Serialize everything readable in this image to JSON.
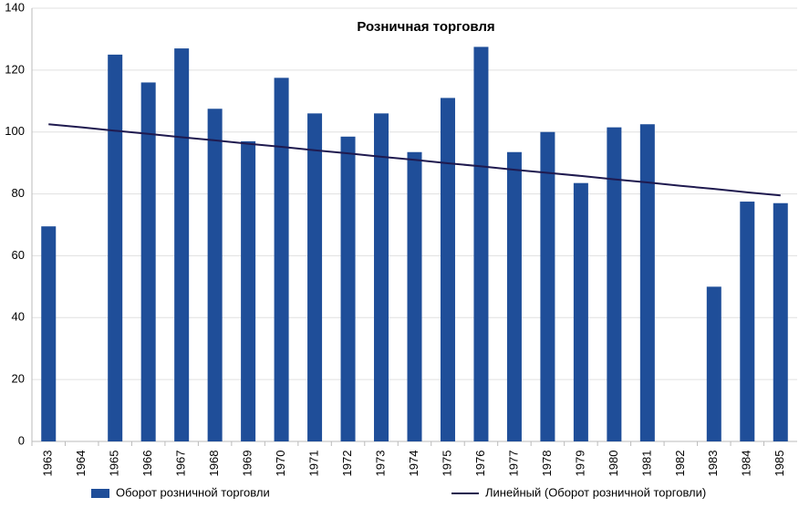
{
  "chart_data": {
    "type": "bar",
    "title": "Розничная торговля",
    "categories": [
      "1963",
      "1964",
      "1965",
      "1966",
      "1967",
      "1968",
      "1969",
      "1970",
      "1971",
      "1972",
      "1973",
      "1974",
      "1975",
      "1976",
      "1977",
      "1978",
      "1979",
      "1980",
      "1981",
      "1982",
      "1983",
      "1984",
      "1985"
    ],
    "series": [
      {
        "name": "Оборот розничной торговли",
        "type": "bar",
        "color": "#1f4e99",
        "values": [
          69.5,
          null,
          125,
          116,
          127,
          107.5,
          97,
          117.5,
          106,
          98.5,
          106,
          93.5,
          111,
          127.5,
          93.5,
          100,
          83.5,
          101.5,
          102.5,
          null,
          50,
          77.5,
          77
        ]
      },
      {
        "name": "Линейный (Оборот розничной торговли)",
        "type": "line",
        "color": "#1f1a4f",
        "values": [
          102.5,
          101.5,
          100.4,
          99.4,
          98.3,
          97.3,
          96.2,
          95.2,
          94.1,
          93.1,
          92.0,
          91.0,
          89.9,
          88.9,
          87.8,
          86.8,
          85.8,
          84.7,
          83.7,
          82.6,
          81.6,
          80.5,
          79.5
        ]
      }
    ],
    "ylim": [
      0,
      140
    ],
    "yticks": [
      0,
      20,
      40,
      60,
      80,
      100,
      120,
      140
    ],
    "grid": true,
    "legend": "bottom"
  }
}
